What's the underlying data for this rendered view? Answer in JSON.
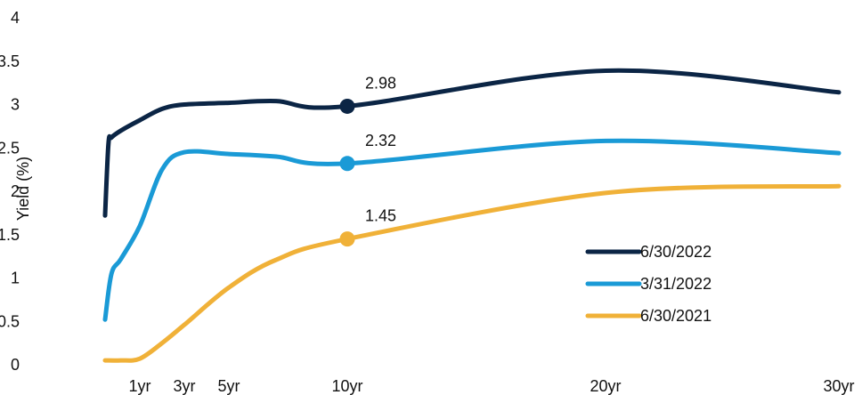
{
  "chart_data": {
    "type": "line",
    "title": "",
    "xlabel": "",
    "ylabel": "Yield (%)",
    "ylim": [
      0,
      4
    ],
    "yticks": [
      "0",
      "0.5",
      "1",
      "1.5",
      "2",
      "2.5",
      "3",
      "3.5",
      "4"
    ],
    "x_ticks": [
      {
        "label": "1yr",
        "value": 1
      },
      {
        "label": "3yr",
        "value": 3
      },
      {
        "label": "5yr",
        "value": 5
      },
      {
        "label": "10yr",
        "value": 10
      },
      {
        "label": "20yr",
        "value": 20
      },
      {
        "label": "30yr",
        "value": 30
      }
    ],
    "grid": false,
    "legend_position": "bottom-right",
    "series": [
      {
        "name": "6/30/2022",
        "color": "#0b2545",
        "points": [
          [
            0.08,
            1.72
          ],
          [
            0.17,
            2.55
          ],
          [
            0.25,
            2.62
          ],
          [
            0.5,
            2.7
          ],
          [
            1,
            2.82
          ],
          [
            2,
            2.95
          ],
          [
            3,
            3.0
          ],
          [
            5,
            3.02
          ],
          [
            7,
            3.04
          ],
          [
            10,
            2.98
          ],
          [
            20,
            3.39
          ],
          [
            30,
            3.14
          ]
        ],
        "marker": {
          "x": 10,
          "y": 2.98,
          "label": "2.98"
        }
      },
      {
        "name": "3/31/2022",
        "color": "#1a9ad6",
        "points": [
          [
            0.08,
            0.52
          ],
          [
            0.25,
            1.05
          ],
          [
            0.5,
            1.22
          ],
          [
            1,
            1.6
          ],
          [
            2,
            2.25
          ],
          [
            3,
            2.45
          ],
          [
            5,
            2.43
          ],
          [
            7,
            2.4
          ],
          [
            10,
            2.32
          ],
          [
            20,
            2.58
          ],
          [
            30,
            2.44
          ]
        ],
        "marker": {
          "x": 10,
          "y": 2.32,
          "label": "2.32"
        }
      },
      {
        "name": "6/30/2021",
        "color": "#f0b138",
        "points": [
          [
            0.08,
            0.05
          ],
          [
            0.5,
            0.05
          ],
          [
            1,
            0.07
          ],
          [
            2,
            0.25
          ],
          [
            3,
            0.46
          ],
          [
            5,
            0.89
          ],
          [
            7,
            1.21
          ],
          [
            10,
            1.45
          ],
          [
            20,
            1.98
          ],
          [
            30,
            2.06
          ]
        ],
        "marker": {
          "x": 10,
          "y": 1.45,
          "label": "1.45"
        }
      }
    ]
  }
}
